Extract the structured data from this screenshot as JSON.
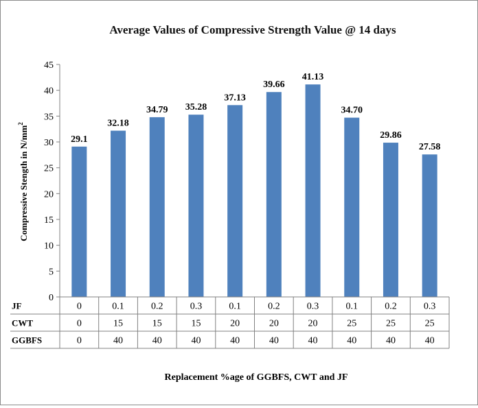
{
  "chart_data": {
    "type": "bar",
    "title": "Average Values of Compressive Strength Value @ 14 days",
    "ylabel": "Compressive Stength in N/mm",
    "ylabel_superscript": "2",
    "xlabel": "Replacement %age of GGBFS, CWT and JF",
    "ylim": [
      0,
      45
    ],
    "yticks": [
      "0",
      "5",
      "10",
      "15",
      "20",
      "25",
      "30",
      "35",
      "40",
      "45"
    ],
    "values": [
      29.1,
      32.18,
      34.79,
      35.28,
      37.13,
      39.66,
      41.13,
      34.7,
      29.86,
      27.58
    ],
    "data_labels": [
      "29.1",
      "32.18",
      "34.79",
      "35.28",
      "37.13",
      "39.66",
      "41.13",
      "34.70",
      "29.86",
      "27.58"
    ],
    "series_color": "#4f81bd",
    "grid": false,
    "table": {
      "row_headers": [
        "JF",
        "CWT",
        "GGBFS"
      ],
      "rows": [
        [
          "0",
          "0.1",
          "0.2",
          "0.3",
          "0.1",
          "0.2",
          "0.3",
          "0.1",
          "0.2",
          "0.3"
        ],
        [
          "0",
          "15",
          "15",
          "15",
          "20",
          "20",
          "20",
          "25",
          "25",
          "25"
        ],
        [
          "0",
          "40",
          "40",
          "40",
          "40",
          "40",
          "40",
          "40",
          "40",
          "40"
        ]
      ]
    }
  }
}
